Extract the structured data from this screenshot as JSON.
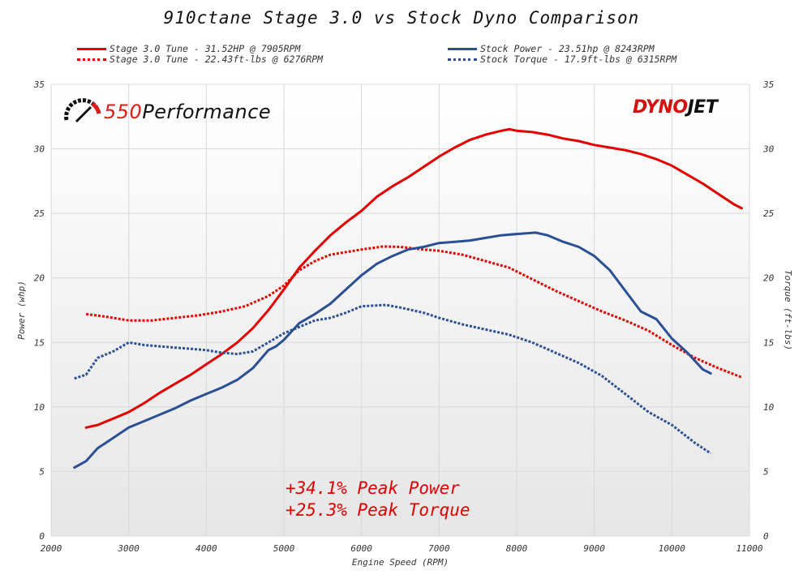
{
  "title": "910ctane Stage 3.0 vs Stock Dyno Comparison",
  "legend": {
    "items": [
      {
        "label": "Stage 3.0 Tune - 31.52HP @ 7905RPM",
        "color": "#e60000",
        "style": "solid"
      },
      {
        "label": "Stage 3.0 Tune - 22.43ft-lbs @ 6276RPM",
        "color": "#e60000",
        "style": "dotted"
      },
      {
        "label": "Stock Power - 23.51hp @ 8243RPM",
        "color": "#2a4f94",
        "style": "solid"
      },
      {
        "label": "Stock Torque - 17.9ft-lbs @ 6315RPM",
        "color": "#2a4f94",
        "style": "dotted"
      }
    ]
  },
  "annotations": [
    "+34.1% Peak Power",
    "+25.3% Peak Torque"
  ],
  "logos": {
    "left": {
      "prefix": "550",
      "suffix": "Performance",
      "icon": "speedometer-icon"
    },
    "right": {
      "part1": "DYNO",
      "part2": "JET"
    }
  },
  "colors": {
    "stage": "#e60000",
    "stock": "#2a4f94",
    "grid": "#d8d8d8"
  },
  "chart_data": {
    "type": "line",
    "title": "910ctane Stage 3.0 vs Stock Dyno Comparison",
    "xlabel": "Engine Speed (RPM)",
    "ylabel": "Power (whp)",
    "y2label": "Torque (ft-lbs)",
    "xlim": [
      2000,
      11000
    ],
    "ylim": [
      0,
      35
    ],
    "y2lim": [
      0,
      35
    ],
    "xticks": [
      2000,
      3000,
      4000,
      5000,
      6000,
      7000,
      8000,
      9000,
      10000,
      11000
    ],
    "yticks": [
      0,
      5,
      10,
      15,
      20,
      25,
      30,
      35
    ],
    "y2ticks": [
      0,
      5,
      10,
      15,
      20,
      25,
      30,
      35
    ],
    "grid": true,
    "legend_position": "top",
    "series": [
      {
        "name": "Stage 3.0 Tune - 31.52HP @ 7905RPM",
        "axis": "left",
        "style": "solid",
        "color": "#e60000",
        "x": [
          2450,
          2600,
          2800,
          3000,
          3200,
          3400,
          3600,
          3800,
          4000,
          4200,
          4400,
          4600,
          4800,
          5000,
          5200,
          5400,
          5600,
          5800,
          6000,
          6200,
          6400,
          6600,
          6800,
          7000,
          7200,
          7400,
          7600,
          7800,
          7905,
          8000,
          8200,
          8400,
          8600,
          8800,
          9000,
          9200,
          9400,
          9600,
          9800,
          10000,
          10200,
          10400,
          10600,
          10800,
          10900
        ],
        "y": [
          8.4,
          8.6,
          9.1,
          9.6,
          10.3,
          11.1,
          11.8,
          12.5,
          13.3,
          14.1,
          15.0,
          16.1,
          17.5,
          19.1,
          20.8,
          22.1,
          23.3,
          24.3,
          25.2,
          26.3,
          27.1,
          27.8,
          28.6,
          29.4,
          30.1,
          30.7,
          31.1,
          31.4,
          31.52,
          31.4,
          31.3,
          31.1,
          30.8,
          30.6,
          30.3,
          30.1,
          29.9,
          29.6,
          29.2,
          28.7,
          28.0,
          27.3,
          26.5,
          25.7,
          25.4
        ]
      },
      {
        "name": "Stage 3.0 Tune - 22.43ft-lbs @ 6276RPM",
        "axis": "right",
        "style": "dotted",
        "color": "#e60000",
        "x": [
          2450,
          2700,
          3000,
          3300,
          3600,
          3900,
          4200,
          4500,
          4800,
          5000,
          5200,
          5400,
          5600,
          5800,
          6000,
          6276,
          6500,
          6800,
          7000,
          7300,
          7600,
          7900,
          8200,
          8500,
          8800,
          9100,
          9400,
          9700,
          10000,
          10300,
          10600,
          10900
        ],
        "y": [
          17.2,
          17.0,
          16.7,
          16.7,
          16.9,
          17.1,
          17.4,
          17.8,
          18.6,
          19.4,
          20.6,
          21.3,
          21.8,
          22.0,
          22.2,
          22.43,
          22.4,
          22.2,
          22.1,
          21.8,
          21.3,
          20.8,
          19.9,
          19.0,
          18.2,
          17.4,
          16.7,
          15.9,
          14.8,
          13.8,
          13.0,
          12.3
        ]
      },
      {
        "name": "Stock Power - 23.51hp @ 8243RPM",
        "axis": "left",
        "style": "solid",
        "color": "#2a4f94",
        "x": [
          2300,
          2450,
          2600,
          2800,
          3000,
          3200,
          3400,
          3600,
          3800,
          4000,
          4200,
          4400,
          4600,
          4800,
          4900,
          5000,
          5200,
          5400,
          5600,
          5800,
          6000,
          6200,
          6400,
          6600,
          6800,
          7000,
          7200,
          7400,
          7600,
          7800,
          8000,
          8243,
          8400,
          8600,
          8800,
          9000,
          9200,
          9400,
          9600,
          9800,
          10000,
          10200,
          10400,
          10500
        ],
        "y": [
          5.3,
          5.8,
          6.8,
          7.6,
          8.4,
          8.9,
          9.4,
          9.9,
          10.5,
          11.0,
          11.5,
          12.1,
          13.0,
          14.4,
          14.7,
          15.2,
          16.5,
          17.2,
          18.0,
          19.1,
          20.2,
          21.1,
          21.7,
          22.2,
          22.4,
          22.7,
          22.8,
          22.9,
          23.1,
          23.3,
          23.4,
          23.51,
          23.3,
          22.8,
          22.4,
          21.7,
          20.6,
          19.0,
          17.4,
          16.8,
          15.3,
          14.2,
          12.9,
          12.6
        ]
      },
      {
        "name": "Stock Torque - 17.9ft-lbs @ 6315RPM",
        "axis": "right",
        "style": "dotted",
        "color": "#2a4f94",
        "x": [
          2300,
          2450,
          2600,
          2800,
          3000,
          3200,
          3400,
          3600,
          3800,
          4000,
          4200,
          4400,
          4600,
          4800,
          5000,
          5200,
          5400,
          5600,
          5800,
          6000,
          6315,
          6500,
          6800,
          7000,
          7300,
          7600,
          7900,
          8200,
          8500,
          8800,
          9100,
          9400,
          9700,
          10000,
          10300,
          10500
        ],
        "y": [
          12.2,
          12.5,
          13.8,
          14.3,
          15.0,
          14.8,
          14.7,
          14.6,
          14.5,
          14.4,
          14.2,
          14.1,
          14.3,
          15.0,
          15.7,
          16.2,
          16.7,
          16.9,
          17.3,
          17.8,
          17.9,
          17.7,
          17.3,
          16.9,
          16.4,
          16.0,
          15.6,
          15.0,
          14.2,
          13.4,
          12.4,
          11.0,
          9.6,
          8.6,
          7.2,
          6.4
        ]
      }
    ]
  }
}
